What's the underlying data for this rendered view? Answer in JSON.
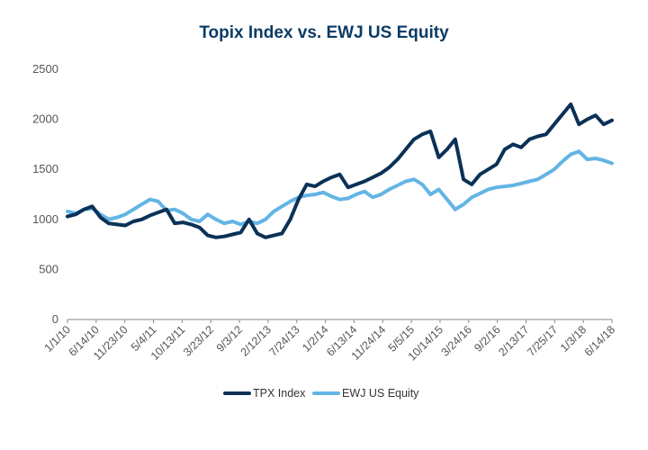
{
  "chart_data": {
    "type": "line",
    "title": "Topix Index vs. EWJ US Equity",
    "xlabel": "",
    "ylabel": "",
    "ylim": [
      0,
      2500
    ],
    "yticks": [
      0,
      500,
      1000,
      1500,
      2000,
      2500
    ],
    "ytick_labels": [
      "0",
      "500",
      "1000",
      "1500",
      "2000",
      "2500"
    ],
    "xtick_labels": [
      "1/1/10",
      "6/14/10",
      "11/23/10",
      "5/4/11",
      "10/13/11",
      "3/23/12",
      "9/3/12",
      "2/12/13",
      "7/24/13",
      "1/2/14",
      "6/13/14",
      "11/24/14",
      "5/5/15",
      "10/14/15",
      "3/24/16",
      "9/2/16",
      "2/13/17",
      "7/25/17",
      "1/3/18",
      "6/14/18"
    ],
    "grid": false,
    "legend": "bottom",
    "colors": {
      "title": "#0b3c64",
      "axis": "#888888",
      "text": "#555555"
    },
    "series": [
      {
        "name": "TPX Index",
        "color": "#0b3156",
        "values": [
          1030,
          1050,
          1100,
          1130,
          1020,
          960,
          950,
          940,
          980,
          1000,
          1040,
          1070,
          1100,
          960,
          970,
          950,
          920,
          840,
          820,
          830,
          850,
          870,
          1000,
          860,
          820,
          840,
          860,
          1000,
          1200,
          1350,
          1330,
          1380,
          1420,
          1450,
          1320,
          1350,
          1380,
          1420,
          1460,
          1520,
          1600,
          1700,
          1800,
          1850,
          1880,
          1620,
          1700,
          1800,
          1400,
          1350,
          1450,
          1500,
          1550,
          1700,
          1750,
          1720,
          1800,
          1830,
          1850,
          1950,
          2050,
          2150,
          1950,
          2000,
          2040,
          1950,
          1990
        ]
      },
      {
        "name": "EWJ US Equity",
        "color": "#62b5e5",
        "values": [
          1080,
          1060,
          1100,
          1110,
          1050,
          1000,
          1020,
          1050,
          1100,
          1150,
          1200,
          1180,
          1090,
          1100,
          1060,
          1000,
          980,
          1050,
          1000,
          960,
          980,
          950,
          980,
          960,
          1000,
          1080,
          1130,
          1180,
          1220,
          1240,
          1250,
          1270,
          1230,
          1200,
          1210,
          1250,
          1280,
          1220,
          1250,
          1300,
          1340,
          1380,
          1400,
          1350,
          1250,
          1300,
          1200,
          1100,
          1150,
          1220,
          1260,
          1300,
          1320,
          1330,
          1340,
          1360,
          1380,
          1400,
          1450,
          1500,
          1580,
          1650,
          1680,
          1600,
          1610,
          1590,
          1560
        ]
      }
    ]
  }
}
